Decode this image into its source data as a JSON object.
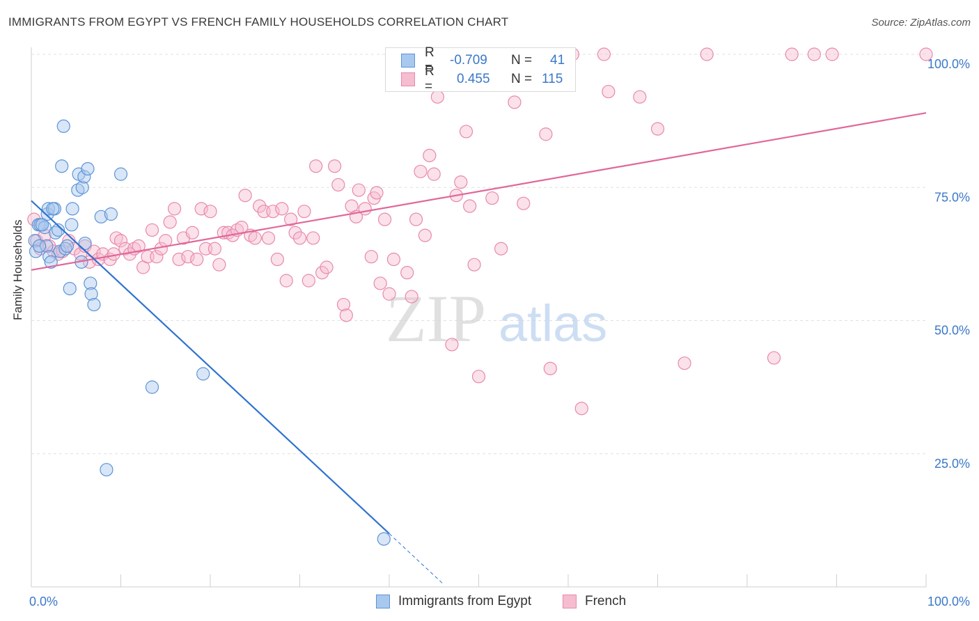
{
  "title": "IMMIGRANTS FROM EGYPT VS FRENCH FAMILY HOUSEHOLDS CORRELATION CHART",
  "source": "Source: ZipAtlas.com",
  "watermark": {
    "zip": "ZIP",
    "atlas": "atlas"
  },
  "legend_top": {
    "rows": [
      {
        "r_label": "R =",
        "r_value": "-0.709",
        "n_label": "N =",
        "n_value": "41"
      },
      {
        "r_label": "R =",
        "r_value": "0.455",
        "n_label": "N =",
        "n_value": "115"
      }
    ]
  },
  "legend_bottom": {
    "items": [
      {
        "label": "Immigrants from Egypt"
      },
      {
        "label": "French"
      }
    ]
  },
  "colors": {
    "blue_fill": "#a9c8ee",
    "blue_stroke": "#5d93d6",
    "blue_line": "#2f72d0",
    "pink_fill": "#f6bcd0",
    "pink_stroke": "#e889ab",
    "pink_line": "#e0679a",
    "axis_text": "#3a78c8",
    "grid": "#e0e0e0"
  },
  "chart_data": {
    "type": "scatter",
    "title": "IMMIGRANTS FROM EGYPT VS FRENCH FAMILY HOUSEHOLDS CORRELATION CHART",
    "xlabel": "",
    "ylabel": "Family Households",
    "xlim": [
      0,
      100
    ],
    "ylim": [
      0,
      100
    ],
    "x_tick_labels": [
      "0.0%",
      "100.0%"
    ],
    "y_tick_labels": [
      "25.0%",
      "50.0%",
      "75.0%",
      "100.0%"
    ],
    "y_ticks": [
      25,
      50,
      75,
      100
    ],
    "grid": true,
    "legend_position": "bottom",
    "series": [
      {
        "name": "Immigrants from Egypt",
        "r": -0.709,
        "n": 41,
        "trend": {
          "x": [
            0,
            40
          ],
          "y": [
            72.5,
            10
          ]
        },
        "trend_extension": {
          "x": [
            40,
            46
          ],
          "y": [
            10,
            0.6
          ]
        },
        "points": [
          [
            0.4,
            65
          ],
          [
            0.5,
            63
          ],
          [
            0.8,
            68
          ],
          [
            1.0,
            68
          ],
          [
            1.5,
            67.5
          ],
          [
            1.7,
            64
          ],
          [
            1.8,
            70
          ],
          [
            1.9,
            71
          ],
          [
            2.0,
            62
          ],
          [
            2.2,
            61
          ],
          [
            2.7,
            66.5
          ],
          [
            2.6,
            71
          ],
          [
            3.0,
            67
          ],
          [
            3.2,
            63
          ],
          [
            3.4,
            79
          ],
          [
            3.6,
            86.5
          ],
          [
            3.8,
            63.5
          ],
          [
            4.0,
            64
          ],
          [
            4.3,
            56
          ],
          [
            4.5,
            68
          ],
          [
            4.6,
            71
          ],
          [
            5.2,
            74.5
          ],
          [
            5.3,
            77.5
          ],
          [
            5.6,
            61
          ],
          [
            5.7,
            75
          ],
          [
            5.9,
            77
          ],
          [
            6.0,
            64.5
          ],
          [
            6.3,
            78.5
          ],
          [
            6.6,
            57
          ],
          [
            6.7,
            55
          ],
          [
            7.0,
            53
          ],
          [
            7.8,
            69.5
          ],
          [
            8.4,
            22
          ],
          [
            8.9,
            70
          ],
          [
            10.0,
            77.5
          ],
          [
            13.5,
            37.5
          ],
          [
            19.2,
            40
          ],
          [
            39.4,
            9
          ],
          [
            1.2,
            68
          ],
          [
            2.4,
            71
          ],
          [
            0.9,
            64
          ]
        ]
      },
      {
        "name": "French",
        "r": 0.455,
        "n": 115,
        "trend": {
          "x": [
            0,
            100
          ],
          "y": [
            59.5,
            89
          ]
        },
        "points": [
          [
            0.3,
            69
          ],
          [
            0.6,
            65
          ],
          [
            1.0,
            63.5
          ],
          [
            1.5,
            66
          ],
          [
            2.0,
            64
          ],
          [
            2.5,
            63
          ],
          [
            3.0,
            62.5
          ],
          [
            3.5,
            63
          ],
          [
            4.2,
            65
          ],
          [
            4.8,
            63.5
          ],
          [
            5.5,
            62.5
          ],
          [
            6.0,
            64
          ],
          [
            6.5,
            61
          ],
          [
            7.0,
            63
          ],
          [
            7.5,
            61.5
          ],
          [
            8.0,
            62.5
          ],
          [
            8.8,
            61.5
          ],
          [
            9.2,
            62.5
          ],
          [
            9.5,
            65.5
          ],
          [
            10.0,
            65
          ],
          [
            10.5,
            63.5
          ],
          [
            11.0,
            62.5
          ],
          [
            11.5,
            63.5
          ],
          [
            12.0,
            64
          ],
          [
            12.5,
            60
          ],
          [
            13.0,
            62
          ],
          [
            13.5,
            67
          ],
          [
            14.0,
            62
          ],
          [
            14.5,
            63.5
          ],
          [
            15.0,
            65
          ],
          [
            15.5,
            68.5
          ],
          [
            16.0,
            71
          ],
          [
            16.5,
            61.5
          ],
          [
            17.0,
            65.5
          ],
          [
            17.5,
            62
          ],
          [
            18.0,
            66.5
          ],
          [
            18.5,
            61.5
          ],
          [
            19.0,
            71
          ],
          [
            19.5,
            63.5
          ],
          [
            20.0,
            70.5
          ],
          [
            20.5,
            63.5
          ],
          [
            21.0,
            60.5
          ],
          [
            21.5,
            66.5
          ],
          [
            22.0,
            66.5
          ],
          [
            22.5,
            66
          ],
          [
            23.0,
            67
          ],
          [
            23.5,
            67.5
          ],
          [
            23.9,
            73.5
          ],
          [
            24.5,
            66
          ],
          [
            25.0,
            65.5
          ],
          [
            25.5,
            71.5
          ],
          [
            26.0,
            70.5
          ],
          [
            26.5,
            65.5
          ],
          [
            27.0,
            70.5
          ],
          [
            27.5,
            61.5
          ],
          [
            28.0,
            71
          ],
          [
            28.5,
            57.5
          ],
          [
            29.0,
            69
          ],
          [
            29.5,
            66.5
          ],
          [
            30.0,
            65.5
          ],
          [
            30.5,
            70.5
          ],
          [
            31.0,
            57.5
          ],
          [
            31.5,
            65.5
          ],
          [
            31.8,
            79
          ],
          [
            32.5,
            59
          ],
          [
            33.0,
            60
          ],
          [
            33.9,
            79
          ],
          [
            34.3,
            75.5
          ],
          [
            34.9,
            53
          ],
          [
            35.2,
            51
          ],
          [
            35.8,
            71.5
          ],
          [
            36.3,
            69.5
          ],
          [
            36.6,
            74.5
          ],
          [
            37.3,
            71
          ],
          [
            38.0,
            62
          ],
          [
            38.3,
            73
          ],
          [
            38.6,
            74
          ],
          [
            39.0,
            57
          ],
          [
            39.5,
            69
          ],
          [
            40.0,
            55
          ],
          [
            40.5,
            61.5
          ],
          [
            42.0,
            59
          ],
          [
            42.5,
            54.5
          ],
          [
            43.0,
            69
          ],
          [
            43.5,
            78
          ],
          [
            44.0,
            66
          ],
          [
            44.5,
            81
          ],
          [
            45.0,
            77.5
          ],
          [
            45.4,
            92
          ],
          [
            45.8,
            96
          ],
          [
            47.0,
            45.5
          ],
          [
            47.5,
            73.5
          ],
          [
            48.0,
            76
          ],
          [
            48.6,
            85.5
          ],
          [
            49.0,
            71.5
          ],
          [
            49.5,
            60.5
          ],
          [
            50.0,
            39.5
          ],
          [
            51.5,
            73
          ],
          [
            52.5,
            63.5
          ],
          [
            53.0,
            96.5
          ],
          [
            54.0,
            91
          ],
          [
            54.5,
            100
          ],
          [
            55.0,
            72
          ],
          [
            56.5,
            100
          ],
          [
            57.5,
            85
          ],
          [
            58.0,
            41
          ],
          [
            60.5,
            100
          ],
          [
            61.5,
            33.5
          ],
          [
            64.0,
            100
          ],
          [
            64.5,
            93
          ],
          [
            68.0,
            92
          ],
          [
            70.0,
            86
          ],
          [
            73.0,
            42
          ],
          [
            75.5,
            100
          ],
          [
            83.0,
            43
          ],
          [
            85.0,
            100
          ],
          [
            87.5,
            100
          ],
          [
            89.5,
            100
          ],
          [
            100.0,
            100
          ]
        ]
      }
    ]
  }
}
